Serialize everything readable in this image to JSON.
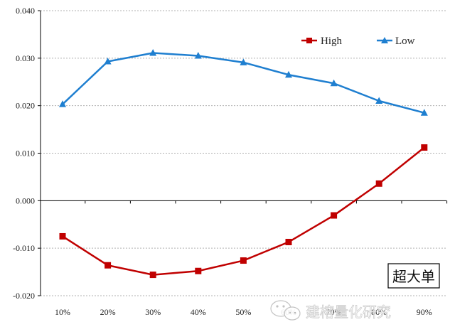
{
  "chart_data": {
    "type": "line",
    "categories": [
      "10%",
      "20%",
      "30%",
      "40%",
      "50%",
      "60%",
      "70%",
      "80%",
      "90%"
    ],
    "series": [
      {
        "name": "High",
        "color": "#c00000",
        "marker": "square",
        "values": [
          -0.0075,
          -0.0136,
          -0.0156,
          -0.0148,
          -0.0126,
          -0.0087,
          -0.0031,
          0.0036,
          0.0112
        ]
      },
      {
        "name": "Low",
        "color": "#1f7fd0",
        "marker": "triangle",
        "values": [
          0.0203,
          0.0293,
          0.0311,
          0.0305,
          0.0291,
          0.0265,
          0.0247,
          0.021,
          0.0185
        ]
      }
    ],
    "y_ticks": [
      "0.040",
      "0.030",
      "0.020",
      "0.010",
      "0.000",
      "-0.010",
      "-0.020"
    ],
    "ylim": [
      -0.02,
      0.04
    ],
    "grid": true,
    "legend": "top-right",
    "annotation": "超大单"
  },
  "watermark": {
    "text": "建榕量化研究",
    "icon": "wechat-icon"
  }
}
